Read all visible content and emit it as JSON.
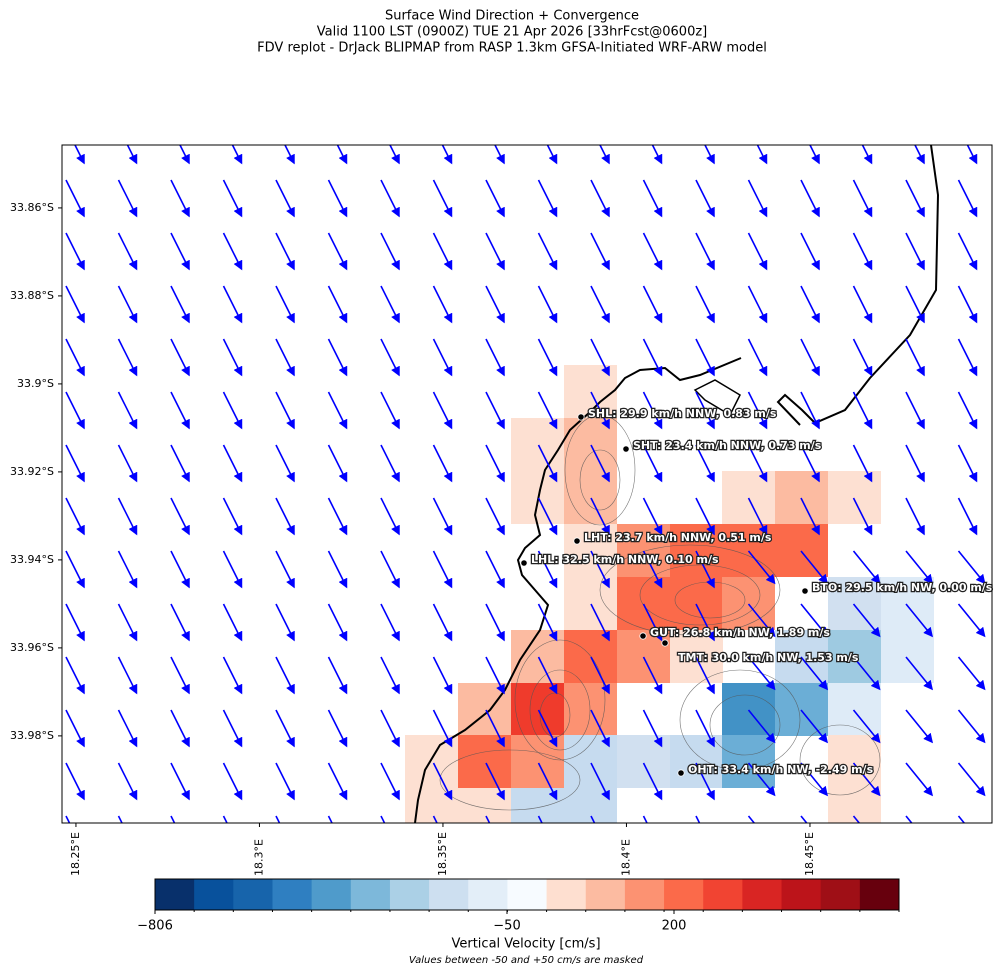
{
  "title": [
    "Surface Wind Direction + Convergence",
    "Valid 1100 LST (0900Z) TUE 21 Apr 2026 [33hrFcst@0600z]",
    "FDV replot - DrJack BLIPMAP from RASP 1.3km GFSA-Initiated WRF-ARW model"
  ],
  "map": {
    "lat_lim": [
      -33.8457,
      -33.9998
    ],
    "lon_lim": [
      18.2462,
      18.4996
    ],
    "lat_ticks": [
      {
        "value": -33.86,
        "label": "33.86°S"
      },
      {
        "value": -33.88,
        "label": "33.88°S"
      },
      {
        "value": -33.9,
        "label": "33.9°S"
      },
      {
        "value": -33.92,
        "label": "33.92°S"
      },
      {
        "value": -33.94,
        "label": "33.94°S"
      },
      {
        "value": -33.96,
        "label": "33.96°S"
      },
      {
        "value": -33.98,
        "label": "33.98°S"
      }
    ],
    "lon_ticks": [
      {
        "value": 18.25,
        "label": "18.25°E"
      },
      {
        "value": 18.3,
        "label": "18.3°E"
      },
      {
        "value": 18.35,
        "label": "18.35°E"
      },
      {
        "value": 18.4,
        "label": "18.4°E"
      },
      {
        "value": 18.45,
        "label": "18.45°E"
      }
    ],
    "stations": [
      "SHL: 29.9 km/h NNW, 0.83 m/s",
      "SHT: 23.4 km/h NNW, 0.73 m/s",
      "LHT: 23.7 km/h NNW, 0.51 m/s",
      "LHL: 32.5 km/h NNW, 0.10 m/s",
      "BTO: 29.5 km/h NW, 0.00 m/s",
      "GUT: 26.8 km/h NW, 1.89 m/s",
      "TMT: 30.0 km/h NW, 1.53 m/s",
      "OHT: 33.4 km/h NW, -2.49 m/s"
    ]
  },
  "colorbar": {
    "ticks": [
      {
        "value": -806,
        "label": "−806"
      },
      {
        "value": -50,
        "label": "−50"
      },
      200
    ],
    "label": "Vertical Velocity [cm/s]",
    "note": "Values between -50 and +50 cm/s are masked"
  }
}
